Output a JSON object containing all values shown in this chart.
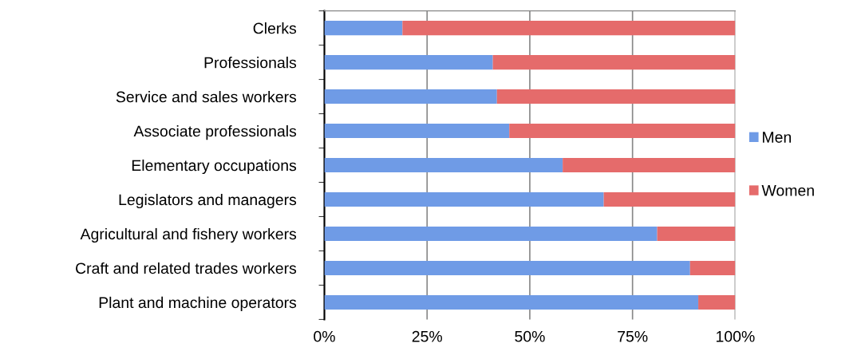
{
  "chart_data": {
    "type": "bar",
    "orientation": "horizontal",
    "stacked": true,
    "categories": [
      "Clerks",
      "Professionals",
      "Service and sales workers",
      "Associate professionals",
      "Elementary occupations",
      "Legislators and managers",
      "Agricultural and fishery workers",
      "Craft and related trades workers",
      "Plant and machine operators"
    ],
    "series": [
      {
        "name": "Men",
        "color": "#6f9be6",
        "values": [
          19,
          41,
          42,
          45,
          58,
          68,
          81,
          89,
          91
        ]
      },
      {
        "name": "Women",
        "color": "#e56b6b",
        "values": [
          81,
          59,
          58,
          55,
          42,
          32,
          19,
          11,
          9
        ]
      }
    ],
    "xlim": [
      0,
      100
    ],
    "xticks": [
      {
        "value": 0,
        "label": "0%"
      },
      {
        "value": 25,
        "label": "25%"
      },
      {
        "value": 50,
        "label": "50%"
      },
      {
        "value": 75,
        "label": "75%"
      },
      {
        "value": 100,
        "label": "100%"
      }
    ],
    "grid": "x",
    "legend": "right"
  }
}
